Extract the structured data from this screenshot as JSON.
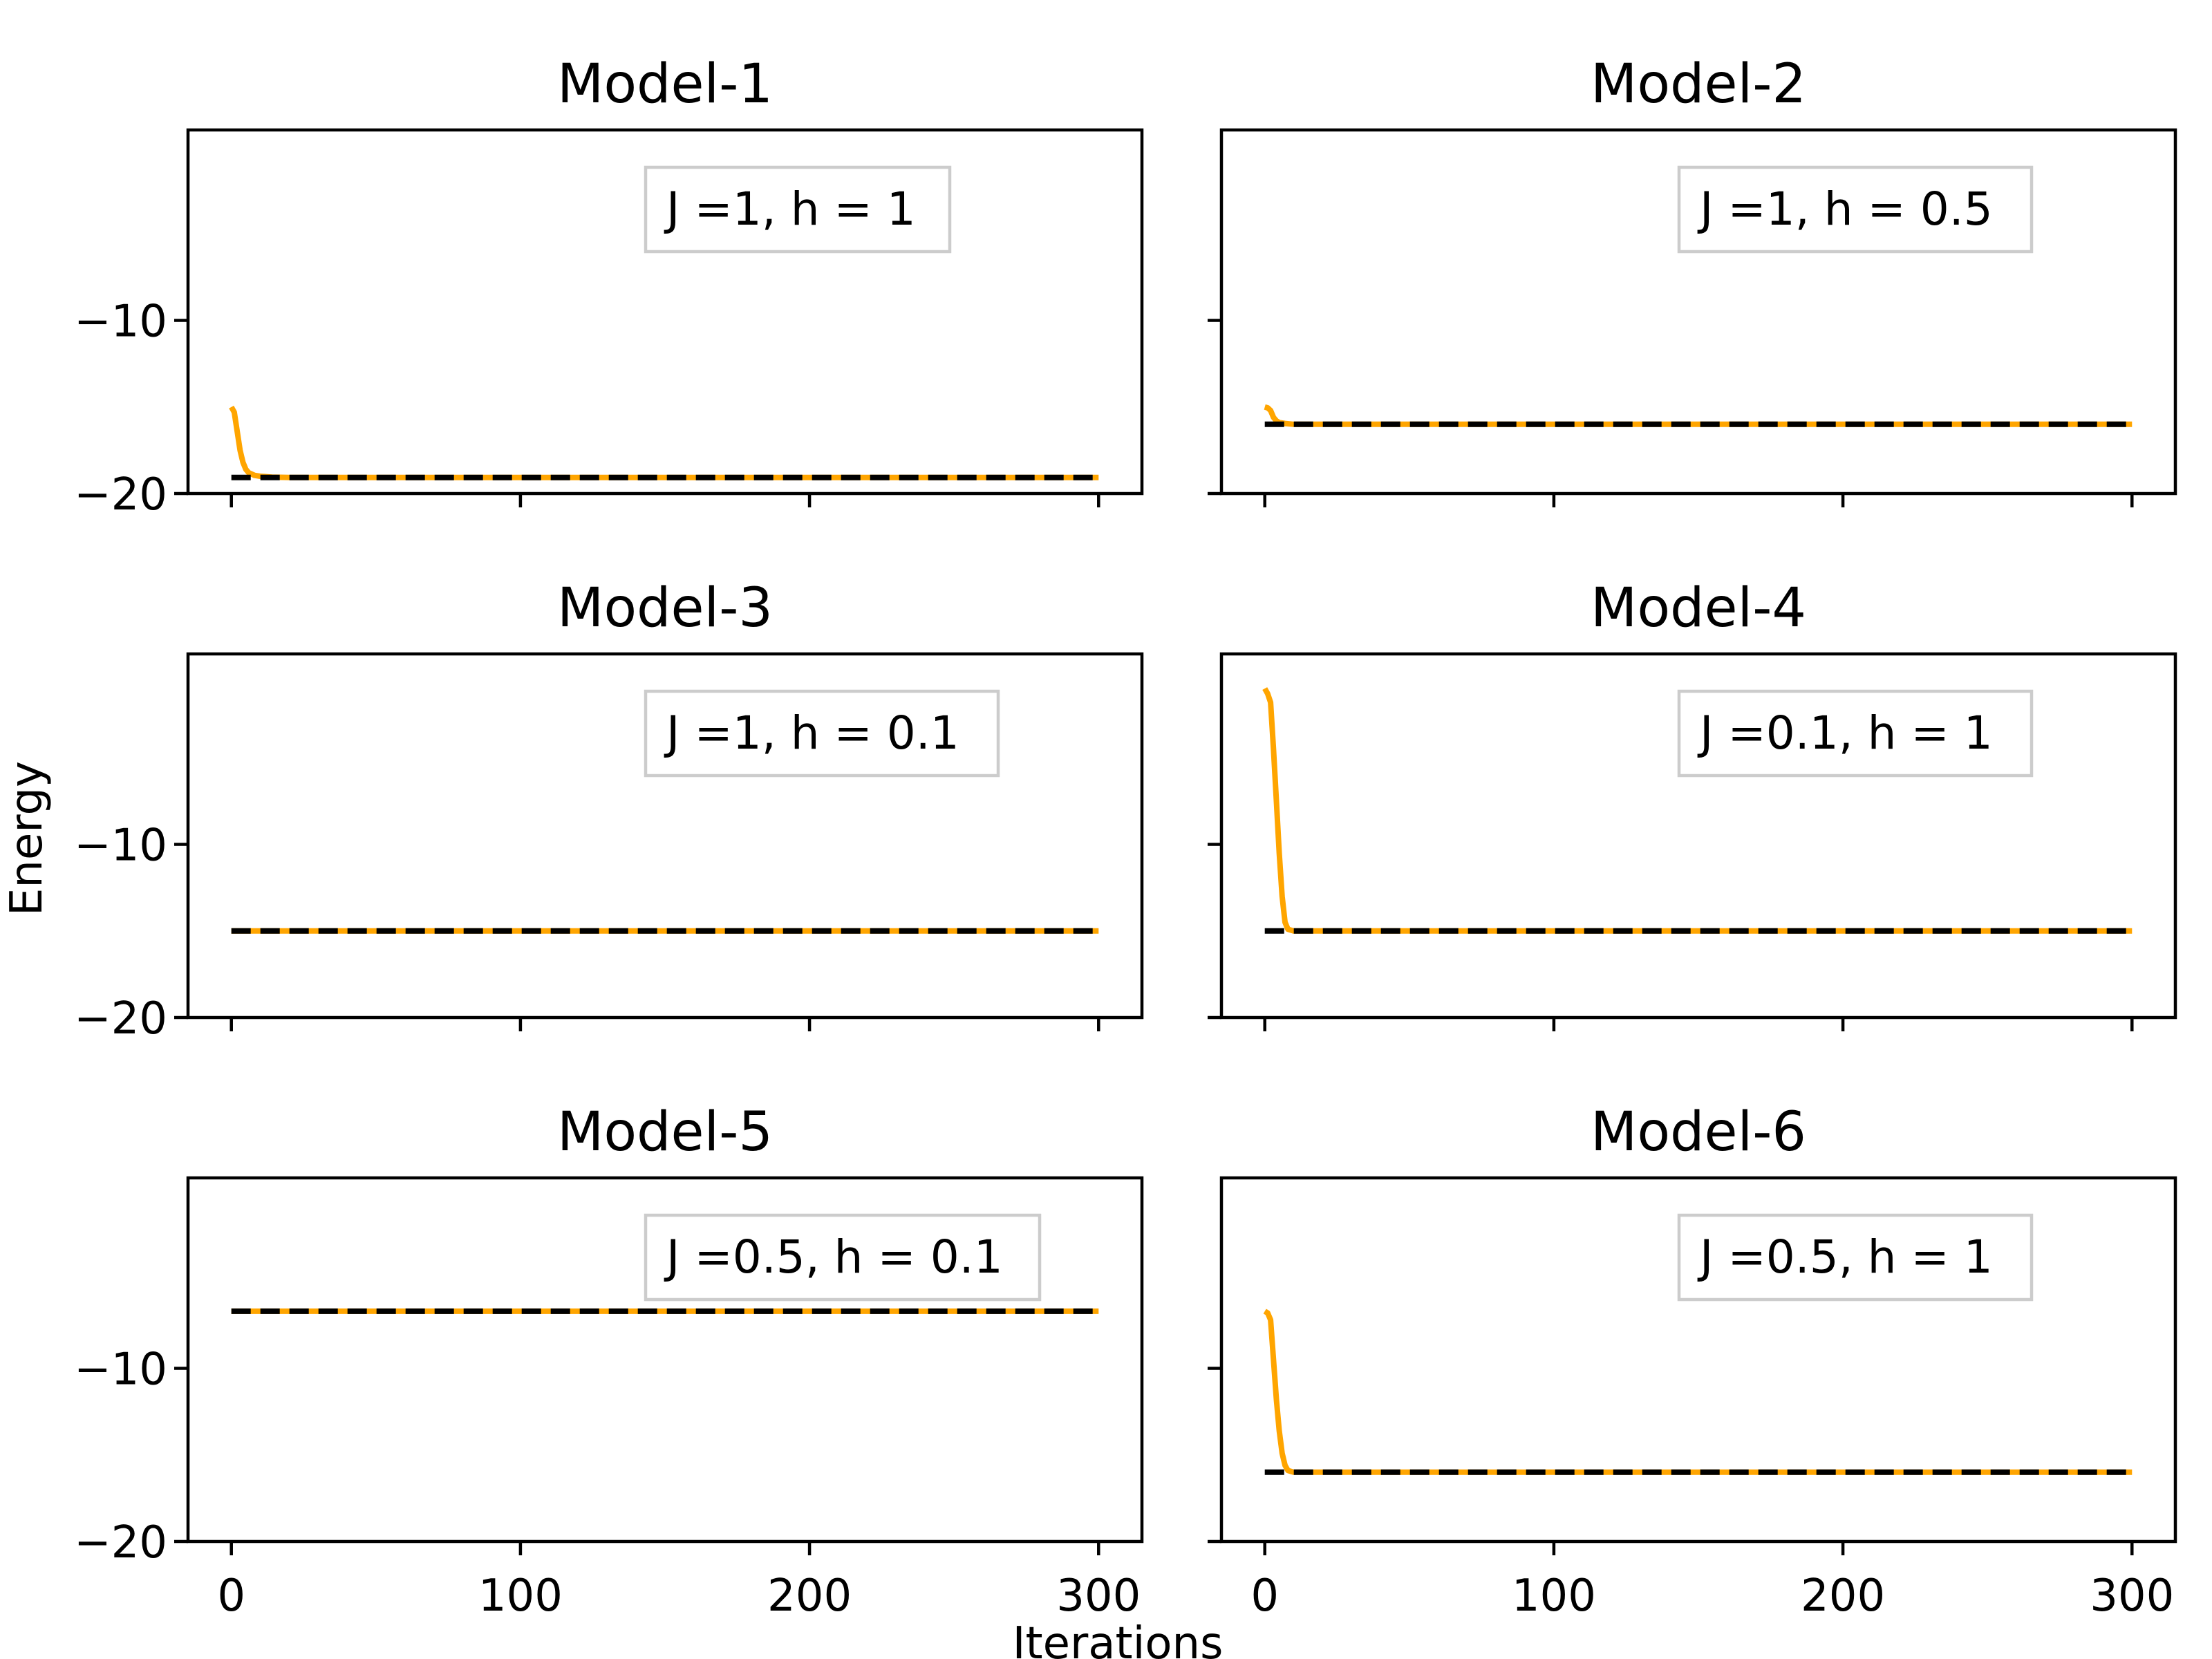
{
  "figure": {
    "xlabel": "Iterations",
    "ylabel": "Energy"
  },
  "chart_data": [
    {
      "type": "line",
      "title": "Model-1",
      "legend": "J =1, h = 1",
      "legend_position": "top-right",
      "xlim": [
        -15,
        315
      ],
      "ylim": [
        -20,
        1
      ],
      "x_ticks": [
        0,
        100,
        200,
        300
      ],
      "y_ticks": [
        -10,
        -20
      ],
      "show_x_tick_labels": false,
      "show_y_tick_labels": true,
      "series": [
        {
          "color": "#ffa500",
          "style": "solid",
          "x": [
            0,
            1,
            2,
            3,
            4,
            5,
            6,
            8,
            10,
            14,
            20,
            300
          ],
          "y": [
            -15.0,
            -15.3,
            -16.4,
            -17.5,
            -18.2,
            -18.6,
            -18.8,
            -18.95,
            -19.0,
            -19.05,
            -19.07,
            -19.07
          ]
        },
        {
          "color": "#000000",
          "style": "dashed",
          "x": [
            0,
            300
          ],
          "y": [
            -19.07,
            -19.07
          ]
        }
      ]
    },
    {
      "type": "line",
      "title": "Model-2",
      "legend": "J =1, h = 0.5",
      "legend_position": "top-right",
      "xlim": [
        -15,
        315
      ],
      "ylim": [
        -20,
        1
      ],
      "x_ticks": [
        0,
        100,
        200,
        300
      ],
      "y_ticks": [
        -10,
        -20
      ],
      "show_x_tick_labels": false,
      "show_y_tick_labels": false,
      "series": [
        {
          "color": "#ffa500",
          "style": "solid",
          "x": [
            0,
            1,
            2,
            3,
            4,
            5,
            7,
            10,
            300
          ],
          "y": [
            -15.0,
            -15.05,
            -15.2,
            -15.6,
            -15.8,
            -15.9,
            -15.95,
            -16.0,
            -16.0
          ]
        },
        {
          "color": "#000000",
          "style": "dashed",
          "x": [
            0,
            300
          ],
          "y": [
            -16.0,
            -16.0
          ]
        }
      ]
    },
    {
      "type": "line",
      "title": "Model-3",
      "legend": "J =1, h = 0.1",
      "legend_position": "top-right",
      "xlim": [
        -15,
        315
      ],
      "ylim": [
        -20,
        1
      ],
      "x_ticks": [
        0,
        100,
        200,
        300
      ],
      "y_ticks": [
        -10,
        -20
      ],
      "show_x_tick_labels": false,
      "show_y_tick_labels": true,
      "series": [
        {
          "color": "#ffa500",
          "style": "solid",
          "x": [
            0,
            300
          ],
          "y": [
            -15.0,
            -15.0
          ]
        },
        {
          "color": "#000000",
          "style": "dashed",
          "x": [
            0,
            300
          ],
          "y": [
            -15.0,
            -15.0
          ]
        }
      ]
    },
    {
      "type": "line",
      "title": "Model-4",
      "legend": "J =0.1, h = 1",
      "legend_position": "top-right",
      "xlim": [
        -15,
        315
      ],
      "ylim": [
        -20,
        1
      ],
      "x_ticks": [
        0,
        100,
        200,
        300
      ],
      "y_ticks": [
        -10,
        -20
      ],
      "show_x_tick_labels": false,
      "show_y_tick_labels": false,
      "series": [
        {
          "color": "#ffa500",
          "style": "solid",
          "x": [
            0,
            1,
            2,
            3,
            4,
            5,
            6,
            7,
            8,
            10,
            300
          ],
          "y": [
            -1.0,
            -1.3,
            -1.8,
            -4.5,
            -7.5,
            -10.5,
            -13.0,
            -14.5,
            -14.9,
            -15.0,
            -15.0
          ]
        },
        {
          "color": "#000000",
          "style": "dashed",
          "x": [
            0,
            300
          ],
          "y": [
            -15.0,
            -15.0
          ]
        }
      ]
    },
    {
      "type": "line",
      "title": "Model-5",
      "legend": "J =0.5, h = 0.1",
      "legend_position": "top-right",
      "xlim": [
        -15,
        315
      ],
      "ylim": [
        -20,
        1
      ],
      "x_ticks": [
        0,
        100,
        200,
        300
      ],
      "y_ticks": [
        -10,
        -20
      ],
      "show_x_tick_labels": true,
      "show_y_tick_labels": true,
      "series": [
        {
          "color": "#ffa500",
          "style": "solid",
          "x": [
            0,
            300
          ],
          "y": [
            -6.7,
            -6.7
          ]
        },
        {
          "color": "#000000",
          "style": "dashed",
          "x": [
            0,
            300
          ],
          "y": [
            -6.7,
            -6.7
          ]
        }
      ]
    },
    {
      "type": "line",
      "title": "Model-6",
      "legend": "J =0.5, h = 1",
      "legend_position": "top-right",
      "xlim": [
        -15,
        315
      ],
      "ylim": [
        -20,
        1
      ],
      "x_ticks": [
        0,
        100,
        200,
        300
      ],
      "y_ticks": [
        -10,
        -20
      ],
      "show_x_tick_labels": true,
      "show_y_tick_labels": false,
      "series": [
        {
          "color": "#ffa500",
          "style": "solid",
          "x": [
            0,
            1,
            2,
            3,
            4,
            5,
            6,
            7,
            8,
            10,
            300
          ],
          "y": [
            -6.7,
            -6.8,
            -7.2,
            -9.5,
            -11.8,
            -13.6,
            -14.9,
            -15.6,
            -15.9,
            -16.0,
            -16.0
          ]
        },
        {
          "color": "#000000",
          "style": "dashed",
          "x": [
            0,
            300
          ],
          "y": [
            -16.0,
            -16.0
          ]
        }
      ]
    }
  ]
}
